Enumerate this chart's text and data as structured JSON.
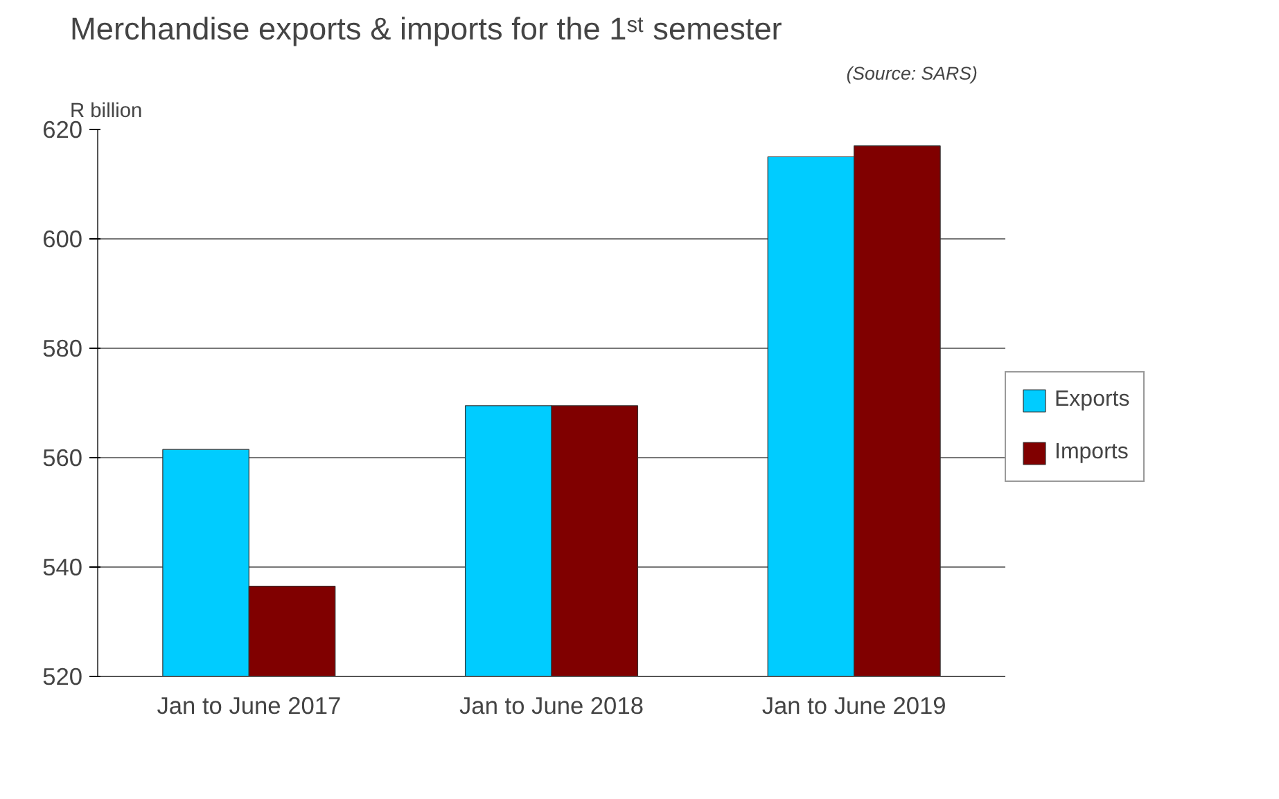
{
  "chart_data": {
    "type": "bar",
    "title": "Merchandise exports & imports for the 1ˢᵗ semester",
    "annotations": [
      "(Source: SARS)"
    ],
    "ylabel": "R billion",
    "categories": [
      "Jan to June 2017",
      "Jan to June 2018",
      "Jan to June 2019"
    ],
    "series": [
      {
        "name": "Exports",
        "color": "#00ccff",
        "values": [
          561.5,
          569.5,
          615
        ]
      },
      {
        "name": "Imports",
        "color": "#800000",
        "values": [
          536.5,
          569.5,
          617
        ]
      }
    ],
    "ylim": [
      520,
      620
    ],
    "yticks": [
      520,
      540,
      560,
      580,
      600,
      620
    ],
    "grid": "y",
    "legend": "right"
  }
}
